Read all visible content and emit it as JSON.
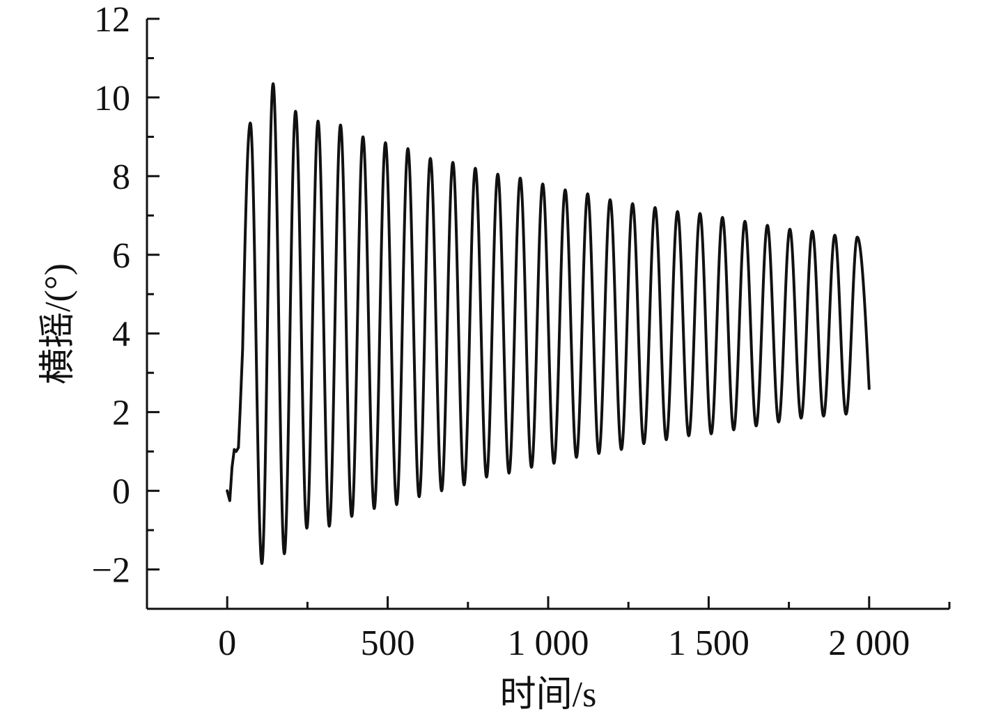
{
  "chart_data": {
    "type": "line",
    "title": "",
    "xlabel": "时间/s",
    "ylabel": "横摇/(°)",
    "xlim": [
      -250,
      2250
    ],
    "ylim": [
      -3,
      12
    ],
    "grid": false,
    "legend": "none",
    "x_ticks": [
      0,
      500,
      1000,
      1500,
      2000
    ],
    "x_tick_labels": [
      "0",
      "500",
      "1 000",
      "1 500",
      "2 000"
    ],
    "x_minor_ticks": [
      250,
      750,
      1250,
      1750,
      2250
    ],
    "y_ticks": [
      -2,
      0,
      2,
      4,
      6,
      8,
      10,
      12
    ],
    "y_tick_labels": [
      "−2",
      "0",
      "2",
      "4",
      "6",
      "8",
      "10",
      "12"
    ],
    "y_minor_ticks": [
      -3,
      -1,
      1,
      3,
      5,
      7,
      9,
      11
    ],
    "series": [
      {
        "color": "#111111",
        "start": {
          "x": 0,
          "y": 0
        },
        "end": {
          "x": 2000,
          "y": 2.6
        },
        "spin_up": [
          {
            "x": 0,
            "y": 0
          },
          {
            "x": 8,
            "y": -0.25
          },
          {
            "x": 15,
            "y": 0.6
          },
          {
            "x": 22,
            "y": 1.05
          },
          {
            "x": 28,
            "y": 1.0
          },
          {
            "x": 35,
            "y": 1.1
          },
          {
            "x": 40,
            "y": 2.0
          },
          {
            "x": 48,
            "y": 3.6
          }
        ],
        "peaks": [
          {
            "x": 72,
            "y": 9.35
          },
          {
            "x": 143,
            "y": 10.35
          },
          {
            "x": 213,
            "y": 9.65
          },
          {
            "x": 283,
            "y": 9.4
          },
          {
            "x": 353,
            "y": 9.3
          },
          {
            "x": 423,
            "y": 9.0
          },
          {
            "x": 493,
            "y": 8.85
          },
          {
            "x": 563,
            "y": 8.7
          },
          {
            "x": 633,
            "y": 8.45
          },
          {
            "x": 703,
            "y": 8.35
          },
          {
            "x": 773,
            "y": 8.2
          },
          {
            "x": 843,
            "y": 8.05
          },
          {
            "x": 913,
            "y": 7.95
          },
          {
            "x": 983,
            "y": 7.8
          },
          {
            "x": 1053,
            "y": 7.65
          },
          {
            "x": 1123,
            "y": 7.55
          },
          {
            "x": 1193,
            "y": 7.4
          },
          {
            "x": 1263,
            "y": 7.3
          },
          {
            "x": 1333,
            "y": 7.2
          },
          {
            "x": 1403,
            "y": 7.1
          },
          {
            "x": 1473,
            "y": 7.05
          },
          {
            "x": 1543,
            "y": 6.95
          },
          {
            "x": 1613,
            "y": 6.85
          },
          {
            "x": 1683,
            "y": 6.75
          },
          {
            "x": 1753,
            "y": 6.65
          },
          {
            "x": 1823,
            "y": 6.6
          },
          {
            "x": 1893,
            "y": 6.5
          },
          {
            "x": 1963,
            "y": 6.45
          }
        ],
        "troughs": [
          {
            "x": 108,
            "y": -1.85
          },
          {
            "x": 178,
            "y": -1.6
          },
          {
            "x": 248,
            "y": -0.95
          },
          {
            "x": 318,
            "y": -0.9
          },
          {
            "x": 388,
            "y": -0.65
          },
          {
            "x": 458,
            "y": -0.45
          },
          {
            "x": 528,
            "y": -0.35
          },
          {
            "x": 598,
            "y": -0.15
          },
          {
            "x": 668,
            "y": 0.0
          },
          {
            "x": 738,
            "y": 0.15
          },
          {
            "x": 808,
            "y": 0.35
          },
          {
            "x": 878,
            "y": 0.45
          },
          {
            "x": 948,
            "y": 0.6
          },
          {
            "x": 1018,
            "y": 0.7
          },
          {
            "x": 1088,
            "y": 0.85
          },
          {
            "x": 1158,
            "y": 0.95
          },
          {
            "x": 1228,
            "y": 1.05
          },
          {
            "x": 1298,
            "y": 1.2
          },
          {
            "x": 1368,
            "y": 1.3
          },
          {
            "x": 1438,
            "y": 1.4
          },
          {
            "x": 1508,
            "y": 1.45
          },
          {
            "x": 1578,
            "y": 1.55
          },
          {
            "x": 1648,
            "y": 1.65
          },
          {
            "x": 1718,
            "y": 1.75
          },
          {
            "x": 1788,
            "y": 1.85
          },
          {
            "x": 1858,
            "y": 1.9
          },
          {
            "x": 1928,
            "y": 1.95
          }
        ]
      }
    ]
  }
}
